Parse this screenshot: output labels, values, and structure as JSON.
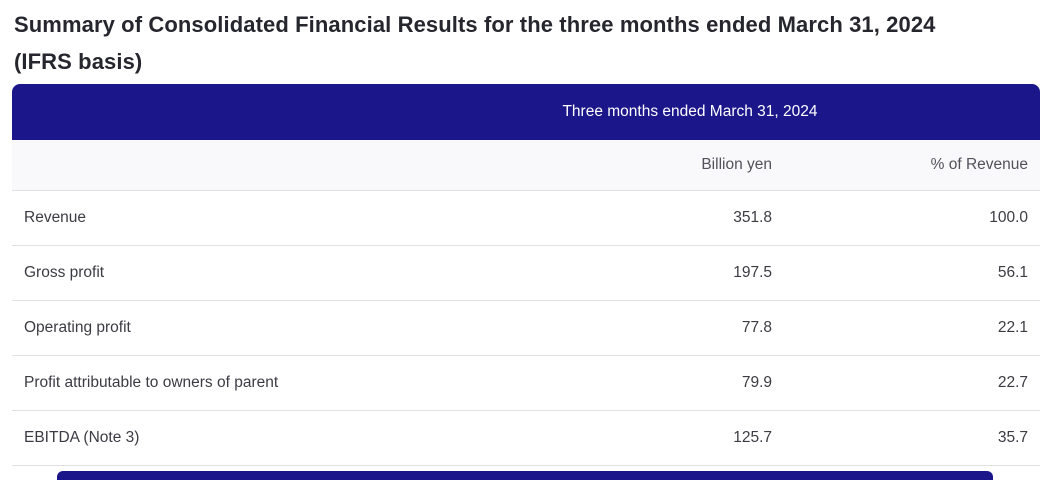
{
  "title": {
    "line1": "Summary of Consolidated Financial Results for the three months ended March 31, 2024",
    "line2": "(IFRS basis)"
  },
  "table": {
    "header_title": "Three months ended March 31, 2024",
    "column_headers": {
      "values": "Billion yen",
      "percent": "% of Revenue"
    },
    "rows": [
      {
        "label": "Revenue",
        "billion_yen": "351.8",
        "percent_of_revenue": "100.0"
      },
      {
        "label": "Gross profit",
        "billion_yen": "197.5",
        "percent_of_revenue": "56.1"
      },
      {
        "label": "Operating profit",
        "billion_yen": "77.8",
        "percent_of_revenue": "22.1"
      },
      {
        "label": "Profit attributable to owners of parent",
        "billion_yen": "79.9",
        "percent_of_revenue": "22.7"
      },
      {
        "label": "EBITDA (Note 3)",
        "billion_yen": "125.7",
        "percent_of_revenue": "35.7"
      }
    ]
  },
  "colors": {
    "header_bar": "#1B1689",
    "header_text": "#FFFFFF",
    "title_text": "#26262E",
    "body_text": "#3C3B44",
    "muted_text": "#52515C",
    "row_border": "#E1E1E4",
    "subheader_bg": "#F9F9FB"
  }
}
